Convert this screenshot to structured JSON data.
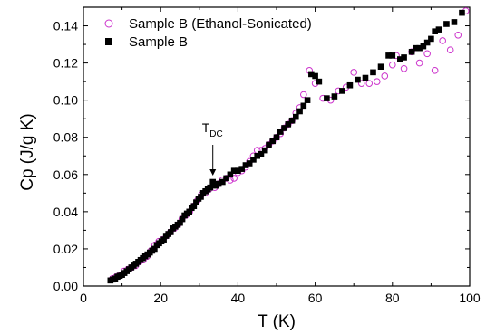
{
  "chart_data": {
    "type": "scatter",
    "xlabel": "T (K)",
    "ylabel": "Cp (J/g K)",
    "xlim": [
      0,
      100
    ],
    "ylim": [
      0.0,
      0.15
    ],
    "x_ticks": [
      "0",
      "20",
      "40",
      "60",
      "80",
      "100"
    ],
    "y_ticks": [
      "0.00",
      "0.02",
      "0.04",
      "0.06",
      "0.08",
      "0.10",
      "0.12",
      "0.14"
    ],
    "grid": false,
    "legend_position": "top-left",
    "annotation": {
      "text": "T",
      "subscript": "DC",
      "x": 33.5,
      "y": 0.056
    },
    "series": [
      {
        "name": "Sample B (Ethanol-Sonicated)",
        "marker": "open-circle",
        "color": "#cc33cc",
        "points": [
          [
            7.5,
            0.004
          ],
          [
            8.5,
            0.005
          ],
          [
            9.5,
            0.006
          ],
          [
            10.5,
            0.008
          ],
          [
            11.5,
            0.009
          ],
          [
            12.5,
            0.01
          ],
          [
            13.5,
            0.011
          ],
          [
            14.5,
            0.013
          ],
          [
            15.5,
            0.014
          ],
          [
            16.5,
            0.016
          ],
          [
            17.5,
            0.019
          ],
          [
            18.5,
            0.022
          ],
          [
            19.5,
            0.024
          ],
          [
            20.5,
            0.025
          ],
          [
            21.5,
            0.027
          ],
          [
            22.5,
            0.029
          ],
          [
            23.5,
            0.031
          ],
          [
            24.5,
            0.033
          ],
          [
            25.5,
            0.036
          ],
          [
            26.5,
            0.038
          ],
          [
            27.5,
            0.04
          ],
          [
            28.5,
            0.043
          ],
          [
            29.5,
            0.046
          ],
          [
            30.5,
            0.049
          ],
          [
            31.5,
            0.05
          ],
          [
            32.5,
            0.052
          ],
          [
            34,
            0.053
          ],
          [
            35,
            0.055
          ],
          [
            36,
            0.057
          ],
          [
            37,
            0.058
          ],
          [
            38,
            0.057
          ],
          [
            39,
            0.058
          ],
          [
            40,
            0.061
          ],
          [
            41,
            0.062
          ],
          [
            42,
            0.064
          ],
          [
            43,
            0.067
          ],
          [
            44,
            0.07
          ],
          [
            45,
            0.073
          ],
          [
            46,
            0.073
          ],
          [
            47,
            0.074
          ],
          [
            48,
            0.076
          ],
          [
            49,
            0.078
          ],
          [
            50,
            0.08
          ],
          [
            51,
            0.082
          ],
          [
            52,
            0.085
          ],
          [
            53,
            0.087
          ],
          [
            54,
            0.089
          ],
          [
            55,
            0.093
          ],
          [
            56,
            0.096
          ],
          [
            57,
            0.103
          ],
          [
            58.5,
            0.116
          ],
          [
            60,
            0.109
          ],
          [
            62,
            0.101
          ],
          [
            64,
            0.1
          ],
          [
            66,
            0.105
          ],
          [
            68,
            0.107
          ],
          [
            70,
            0.115
          ],
          [
            72,
            0.109
          ],
          [
            74,
            0.109
          ],
          [
            76,
            0.11
          ],
          [
            78,
            0.113
          ],
          [
            80,
            0.119
          ],
          [
            81,
            0.124
          ],
          [
            83,
            0.117
          ],
          [
            85,
            0.126
          ],
          [
            87,
            0.12
          ],
          [
            89,
            0.125
          ],
          [
            91,
            0.116
          ],
          [
            93,
            0.132
          ],
          [
            95,
            0.127
          ],
          [
            97,
            0.135
          ],
          [
            99,
            0.148
          ]
        ]
      },
      {
        "name": "Sample B",
        "marker": "filled-square",
        "color": "#000000",
        "points": [
          [
            7,
            0.003
          ],
          [
            7.6,
            0.0035
          ],
          [
            8.2,
            0.004
          ],
          [
            8.8,
            0.005
          ],
          [
            9.4,
            0.0055
          ],
          [
            10,
            0.006
          ],
          [
            10.6,
            0.007
          ],
          [
            11.2,
            0.008
          ],
          [
            11.8,
            0.009
          ],
          [
            12.4,
            0.01
          ],
          [
            13,
            0.011
          ],
          [
            13.6,
            0.012
          ],
          [
            14.2,
            0.013
          ],
          [
            14.8,
            0.014
          ],
          [
            15.4,
            0.015
          ],
          [
            16,
            0.016
          ],
          [
            16.6,
            0.017
          ],
          [
            17.2,
            0.018
          ],
          [
            17.8,
            0.019
          ],
          [
            18.4,
            0.02
          ],
          [
            19,
            0.022
          ],
          [
            19.6,
            0.023
          ],
          [
            20.2,
            0.024
          ],
          [
            20.8,
            0.025
          ],
          [
            21.4,
            0.027
          ],
          [
            22,
            0.028
          ],
          [
            22.6,
            0.029
          ],
          [
            23.2,
            0.031
          ],
          [
            23.8,
            0.032
          ],
          [
            24.4,
            0.033
          ],
          [
            25,
            0.034
          ],
          [
            25.6,
            0.036
          ],
          [
            26.2,
            0.038
          ],
          [
            26.8,
            0.039
          ],
          [
            27.4,
            0.04
          ],
          [
            28,
            0.042
          ],
          [
            28.6,
            0.043
          ],
          [
            29.2,
            0.045
          ],
          [
            29.8,
            0.047
          ],
          [
            30.4,
            0.048
          ],
          [
            31,
            0.05
          ],
          [
            31.6,
            0.051
          ],
          [
            32.2,
            0.052
          ],
          [
            32.8,
            0.053
          ],
          [
            33.5,
            0.056
          ],
          [
            34.2,
            0.054
          ],
          [
            35,
            0.055
          ],
          [
            36,
            0.056
          ],
          [
            37,
            0.058
          ],
          [
            38,
            0.06
          ],
          [
            39,
            0.062
          ],
          [
            40,
            0.062
          ],
          [
            41,
            0.063
          ],
          [
            42,
            0.065
          ],
          [
            43,
            0.066
          ],
          [
            44,
            0.068
          ],
          [
            45,
            0.07
          ],
          [
            46,
            0.071
          ],
          [
            47,
            0.073
          ],
          [
            48,
            0.076
          ],
          [
            49,
            0.078
          ],
          [
            50,
            0.08
          ],
          [
            51,
            0.083
          ],
          [
            52,
            0.085
          ],
          [
            53,
            0.087
          ],
          [
            54,
            0.089
          ],
          [
            55,
            0.091
          ],
          [
            56,
            0.094
          ],
          [
            57,
            0.097
          ],
          [
            58,
            0.1
          ],
          [
            59,
            0.114
          ],
          [
            60,
            0.113
          ],
          [
            61,
            0.11
          ],
          [
            63,
            0.101
          ],
          [
            65,
            0.102
          ],
          [
            67,
            0.105
          ],
          [
            69,
            0.108
          ],
          [
            71,
            0.111
          ],
          [
            73,
            0.112
          ],
          [
            75,
            0.115
          ],
          [
            77,
            0.118
          ],
          [
            79,
            0.124
          ],
          [
            80,
            0.124
          ],
          [
            82,
            0.122
          ],
          [
            83,
            0.123
          ],
          [
            85,
            0.126
          ],
          [
            86,
            0.128
          ],
          [
            87,
            0.128
          ],
          [
            88,
            0.129
          ],
          [
            89,
            0.131
          ],
          [
            90,
            0.133
          ],
          [
            91,
            0.137
          ],
          [
            92,
            0.138
          ],
          [
            94,
            0.141
          ],
          [
            96,
            0.142
          ],
          [
            98,
            0.147
          ]
        ]
      }
    ]
  }
}
